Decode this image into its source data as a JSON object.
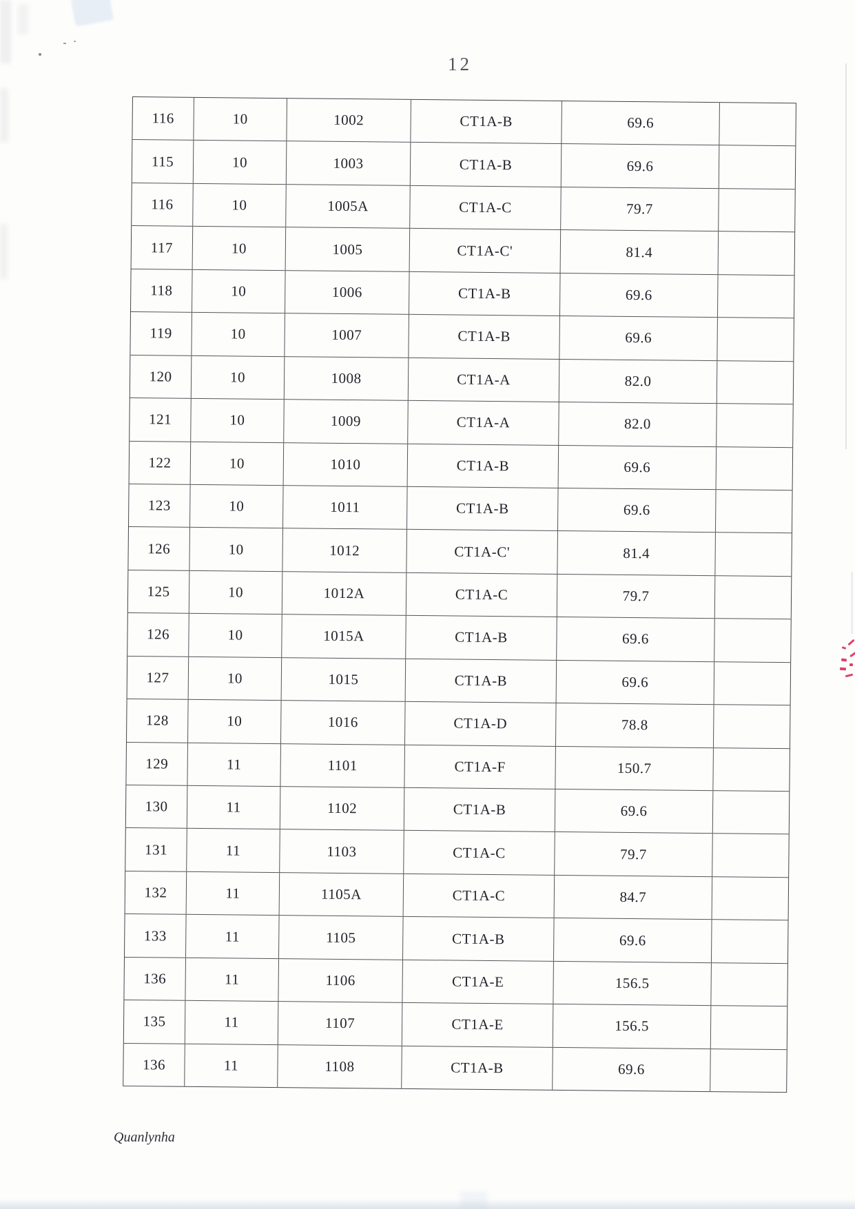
{
  "page": {
    "number": "12",
    "footer": "Quanlynha"
  },
  "colors": {
    "paper": "#fdfdfc",
    "table_line": "#55555a",
    "text": "#23232b",
    "stamp_red": "#d6275b"
  },
  "table": {
    "rows": [
      [
        "116",
        "10",
        "1002",
        "CT1A-B",
        "69.6",
        ""
      ],
      [
        "115",
        "10",
        "1003",
        "CT1A-B",
        "69.6",
        ""
      ],
      [
        "116",
        "10",
        "1005A",
        "CT1A-C",
        "79.7",
        ""
      ],
      [
        "117",
        "10",
        "1005",
        "CT1A-C'",
        "81.4",
        ""
      ],
      [
        "118",
        "10",
        "1006",
        "CT1A-B",
        "69.6",
        ""
      ],
      [
        "119",
        "10",
        "1007",
        "CT1A-B",
        "69.6",
        ""
      ],
      [
        "120",
        "10",
        "1008",
        "CT1A-A",
        "82.0",
        ""
      ],
      [
        "121",
        "10",
        "1009",
        "CT1A-A",
        "82.0",
        ""
      ],
      [
        "122",
        "10",
        "1010",
        "CT1A-B",
        "69.6",
        ""
      ],
      [
        "123",
        "10",
        "1011",
        "CT1A-B",
        "69.6",
        ""
      ],
      [
        "126",
        "10",
        "1012",
        "CT1A-C'",
        "81.4",
        ""
      ],
      [
        "125",
        "10",
        "1012A",
        "CT1A-C",
        "79.7",
        ""
      ],
      [
        "126",
        "10",
        "1015A",
        "CT1A-B",
        "69.6",
        ""
      ],
      [
        "127",
        "10",
        "1015",
        "CT1A-B",
        "69.6",
        ""
      ],
      [
        "128",
        "10",
        "1016",
        "CT1A-D",
        "78.8",
        ""
      ],
      [
        "129",
        "11",
        "1101",
        "CT1A-F",
        "150.7",
        ""
      ],
      [
        "130",
        "11",
        "1102",
        "CT1A-B",
        "69.6",
        ""
      ],
      [
        "131",
        "11",
        "1103",
        "CT1A-C",
        "79.7",
        ""
      ],
      [
        "132",
        "11",
        "1105A",
        "CT1A-C",
        "84.7",
        ""
      ],
      [
        "133",
        "11",
        "1105",
        "CT1A-B",
        "69.6",
        ""
      ],
      [
        "136",
        "11",
        "1106",
        "CT1A-E",
        "156.5",
        ""
      ],
      [
        "135",
        "11",
        "1107",
        "CT1A-E",
        "156.5",
        ""
      ],
      [
        "136",
        "11",
        "1108",
        "CT1A-B",
        "69.6",
        ""
      ]
    ]
  }
}
